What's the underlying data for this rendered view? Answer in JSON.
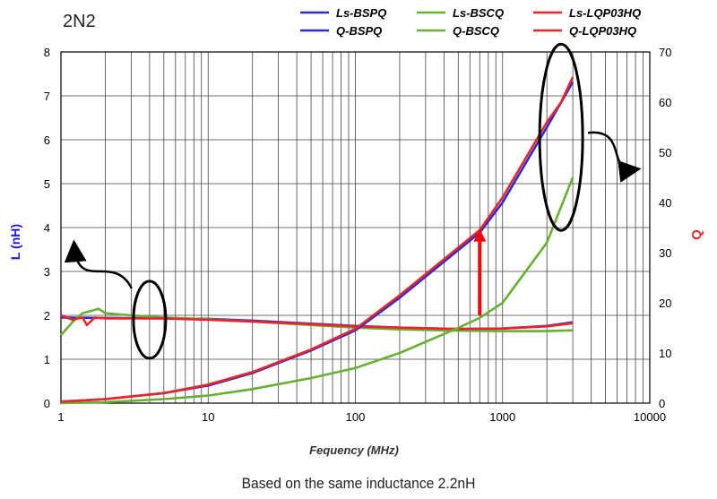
{
  "chart_data": {
    "type": "line",
    "title": "2N2",
    "caption": "Based on the same inductance 2.2nH",
    "xlabel": "Fequency (MHz)",
    "ylabel_left": "L (nH)",
    "ylabel_right": "Q",
    "x_scale": "log",
    "xlim": [
      1,
      10000
    ],
    "ylim_left": [
      0,
      8
    ],
    "ylim_right": [
      0,
      70
    ],
    "x_ticks": [
      "1",
      "10",
      "100",
      "1000",
      "10000"
    ],
    "y_left_ticks": [
      "0",
      "1",
      "2",
      "3",
      "4",
      "5",
      "6",
      "7",
      "8"
    ],
    "y_right_ticks": [
      "0",
      "10",
      "20",
      "30",
      "40",
      "50",
      "60",
      "70"
    ],
    "grid": true,
    "legend_position": "top-right",
    "colors": {
      "BSPQ": "#2b2bd6",
      "BSCQ": "#66b032",
      "LQP03HQ": "#e8262a",
      "left_axis_label": "#1c1cd6",
      "right_axis_label": "#e8262a",
      "arrow": "#ff0000"
    },
    "series": [
      {
        "name": "Ls-BSPQ",
        "axis": "left",
        "color": "#2b2bd6",
        "x": [
          1,
          2,
          5,
          10,
          20,
          50,
          100,
          200,
          500,
          1000,
          2000,
          3000
        ],
        "y": [
          1.95,
          1.94,
          1.93,
          1.92,
          1.88,
          1.81,
          1.76,
          1.72,
          1.69,
          1.7,
          1.76,
          1.84
        ]
      },
      {
        "name": "Ls-BSCQ",
        "axis": "left",
        "color": "#66b032",
        "x": [
          1,
          1.2,
          1.4,
          1.6,
          1.8,
          2,
          3,
          5,
          10,
          20,
          50,
          100,
          200,
          500,
          1000,
          2000,
          3000
        ],
        "y": [
          1.55,
          1.85,
          2.05,
          2.1,
          2.15,
          2.05,
          2.0,
          1.95,
          1.91,
          1.86,
          1.78,
          1.72,
          1.68,
          1.65,
          1.64,
          1.64,
          1.66
        ]
      },
      {
        "name": "Ls-LQP03HQ",
        "axis": "left",
        "color": "#e8262a",
        "x": [
          1,
          1.2,
          1.4,
          1.5,
          1.7,
          2,
          3,
          5,
          10,
          20,
          50,
          100,
          200,
          500,
          1000,
          2000,
          3000
        ],
        "y": [
          2.0,
          1.9,
          1.95,
          1.78,
          1.95,
          1.93,
          1.93,
          1.93,
          1.9,
          1.86,
          1.8,
          1.75,
          1.72,
          1.69,
          1.7,
          1.75,
          1.82
        ]
      },
      {
        "name": "Q-BSPQ",
        "axis": "right",
        "color": "#2b2bd6",
        "x": [
          1,
          2,
          5,
          10,
          20,
          50,
          100,
          200,
          500,
          700,
          1000,
          2000,
          3000
        ],
        "y": [
          0.3,
          0.8,
          2,
          3.5,
          6,
          10.5,
          14.5,
          21,
          30.5,
          34,
          40,
          55,
          64
        ]
      },
      {
        "name": "Q-BSCQ",
        "axis": "right",
        "color": "#66b032",
        "x": [
          1,
          2,
          5,
          10,
          20,
          50,
          100,
          200,
          500,
          700,
          1000,
          2000,
          3000
        ],
        "y": [
          0,
          0.2,
          0.8,
          1.5,
          2.8,
          5,
          7,
          10,
          15,
          17,
          20,
          32,
          45
        ]
      },
      {
        "name": "Q-LQP03HQ",
        "axis": "right",
        "color": "#e8262a",
        "x": [
          1,
          2,
          5,
          10,
          20,
          50,
          100,
          200,
          500,
          700,
          1000,
          2000,
          2500,
          3000
        ],
        "y": [
          0.3,
          0.8,
          2,
          3.7,
          6.2,
          10.7,
          14.8,
          21.5,
          31,
          34.5,
          41,
          56,
          60,
          65
        ]
      }
    ],
    "annotations": {
      "red_arrow_x": 700,
      "red_arrow_from_q": 17.5,
      "red_arrow_to_q": 34,
      "left_ellipse_x": 4,
      "left_ellipse_l": 1.9,
      "right_ellipse_x": 2500,
      "right_ellipse_q": 53
    }
  }
}
